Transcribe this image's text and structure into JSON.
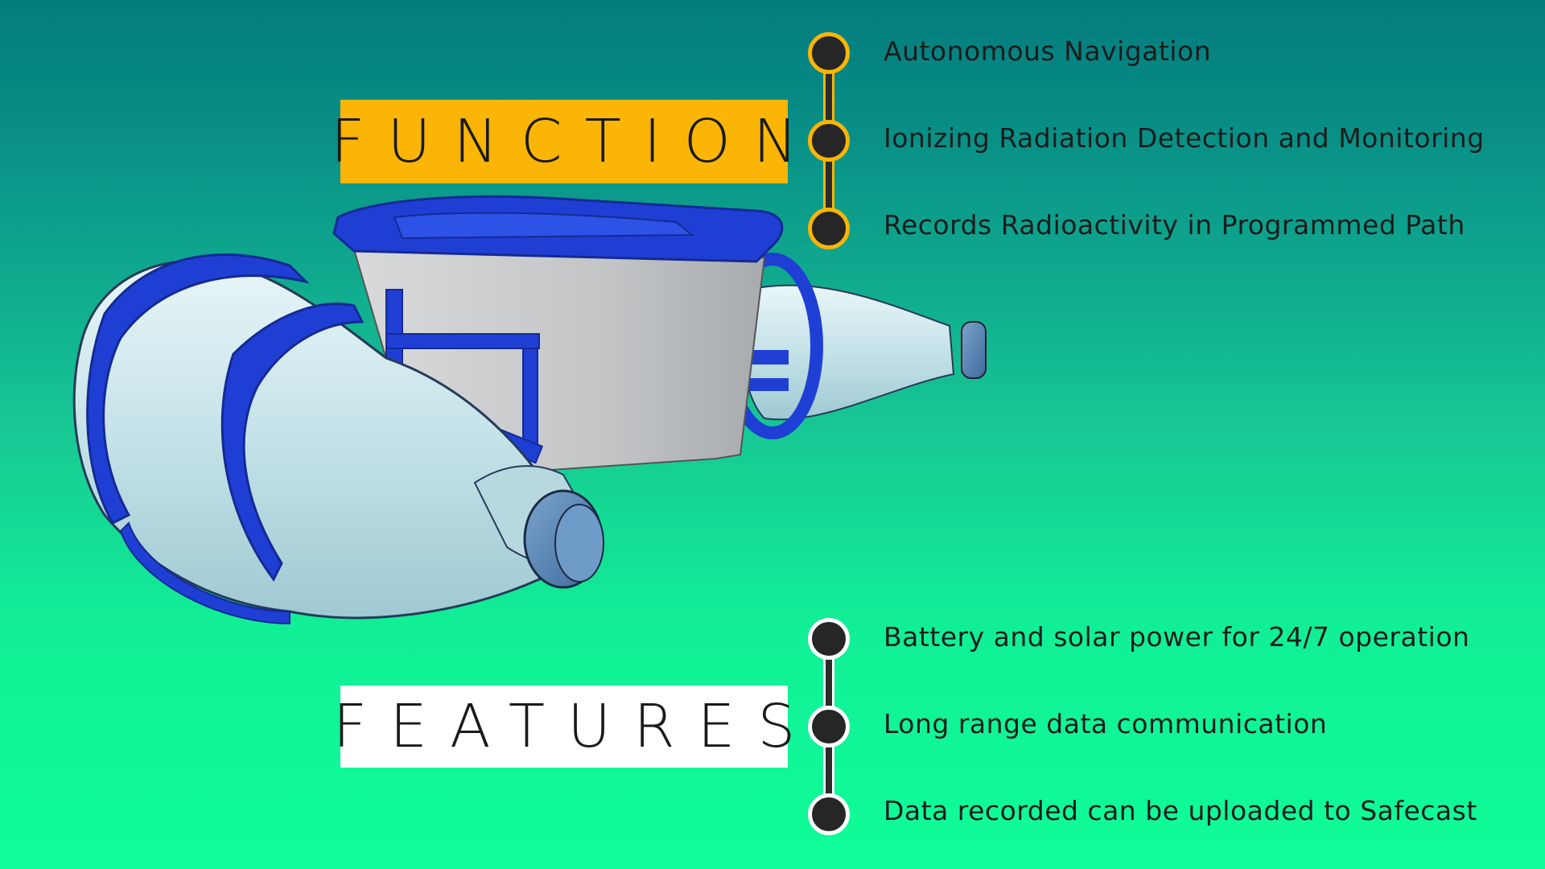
{
  "function_section": {
    "label": "FUNCTION",
    "items": [
      "Autonomous Navigation",
      "Ionizing Radiation Detection and Monitoring",
      "Records Radioactivity in Programmed Path"
    ]
  },
  "features_section": {
    "label": "FEATURES",
    "items": [
      "Battery and solar power for 24/7 operation",
      "Long range data communication",
      "Data recorded can be uploaded to Safecast"
    ]
  },
  "colors": {
    "function_accent": "#fbb506",
    "features_accent": "#ffffff",
    "frame_blue": "#1f3fd4",
    "bottle_light": "#cfe8ee",
    "box_grey": "#c8cacc",
    "cap_blue": "#5a86b8"
  }
}
